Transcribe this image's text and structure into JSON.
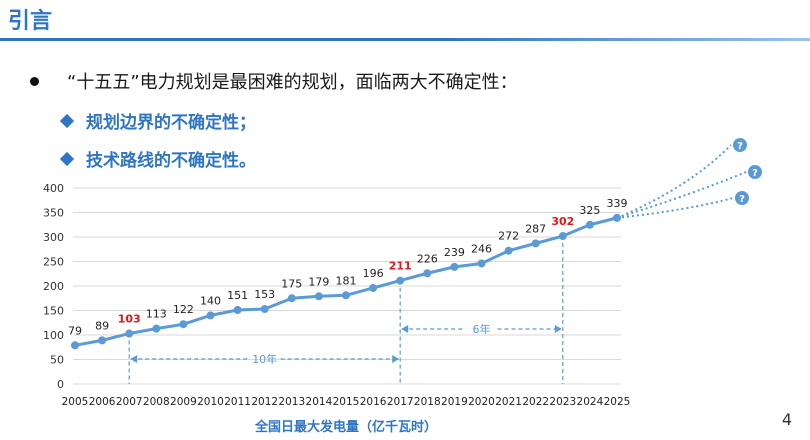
{
  "slide": {
    "title": "引言",
    "bullet": "“十五五”电力规划是最困难的规划，面临两大不确定性：",
    "sub_points": [
      "规划边界的不确定性；",
      "技术路线的不确定性。"
    ],
    "page_number": "4"
  },
  "colors": {
    "accent": "#2e75c4",
    "series": "#5b9bd5",
    "highlight": "#e8141b"
  },
  "chart_data": {
    "type": "line",
    "title": "",
    "xlabel": "全国日最大发电量（亿千瓦时）",
    "ylabel": "",
    "ylim": [
      0,
      400
    ],
    "yticks": [
      0,
      50,
      100,
      150,
      200,
      250,
      300,
      350,
      400
    ],
    "grid": true,
    "x": [
      "2005",
      "2006",
      "2007",
      "2008",
      "2009",
      "2010",
      "2011",
      "2012",
      "2013",
      "2014",
      "2015",
      "2016",
      "2017",
      "2018",
      "2019",
      "2020",
      "2021",
      "2022",
      "2023",
      "2024",
      "2025"
    ],
    "series": [
      {
        "values": [
          79,
          89,
          103,
          113,
          122,
          140,
          151,
          153,
          175,
          179,
          181,
          196,
          211,
          226,
          239,
          246,
          272,
          287,
          302,
          325,
          339
        ],
        "highlighted_years": [
          "2007",
          "2017",
          "2023"
        ]
      }
    ],
    "annotations": [
      {
        "label": "10年",
        "from": "2007",
        "to": "2017"
      },
      {
        "label": "6年",
        "from": "2017",
        "to": "2023"
      }
    ],
    "forecast_markers": [
      "?",
      "?",
      "?"
    ]
  }
}
